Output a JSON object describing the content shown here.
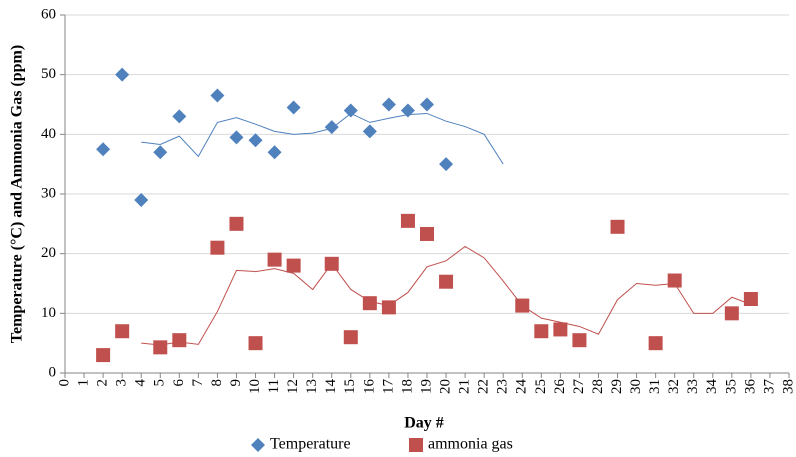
{
  "chart_data": {
    "type": "scatter",
    "xlabel": "Day #",
    "ylabel": "Temperature (°C) and Ammonia Gas (ppm)",
    "xlim": [
      0,
      38
    ],
    "ylim": [
      0,
      60
    ],
    "xticks": [
      0,
      1,
      2,
      3,
      4,
      5,
      6,
      7,
      8,
      9,
      10,
      11,
      12,
      13,
      14,
      15,
      16,
      17,
      18,
      19,
      20,
      21,
      22,
      23,
      24,
      25,
      26,
      27,
      28,
      29,
      30,
      31,
      32,
      33,
      34,
      35,
      36,
      37,
      38
    ],
    "yticks": [
      0,
      10,
      20,
      30,
      40,
      50,
      60
    ],
    "grid": true,
    "legend": "bottom",
    "series": [
      {
        "name": "Temperature",
        "color": "#4f81bd",
        "marker": "diamond",
        "x": [
          2,
          3,
          4,
          5,
          6,
          8,
          9,
          10,
          11,
          12,
          14,
          15,
          16,
          17,
          18,
          19,
          20
        ],
        "values": [
          37.5,
          50,
          29,
          37,
          43,
          46.5,
          39.5,
          39,
          37,
          44.5,
          41.2,
          44,
          40.5,
          45,
          44,
          45,
          35
        ]
      },
      {
        "name": "ammonia gas",
        "color": "#c0504d",
        "marker": "square",
        "x": [
          2,
          3,
          5,
          6,
          8,
          9,
          10,
          11,
          12,
          14,
          15,
          16,
          17,
          18,
          19,
          20,
          24,
          25,
          26,
          27,
          29,
          31,
          32,
          35,
          36
        ],
        "values": [
          3,
          7,
          4.3,
          5.5,
          21,
          25,
          5,
          19,
          18,
          18.3,
          6,
          11.7,
          11,
          25.5,
          23.3,
          15.3,
          11.3,
          7,
          7.3,
          5.5,
          24.5,
          5,
          15.5,
          10,
          12.4
        ]
      }
    ],
    "trendlines": [
      {
        "color": "#4f81bd",
        "x": [
          4,
          5,
          6,
          7,
          8,
          9,
          10,
          11,
          12,
          13,
          14,
          15,
          16,
          17,
          18,
          19,
          20,
          21,
          22,
          23
        ],
        "values": [
          38.7,
          38.3,
          39.7,
          36.3,
          42,
          42.8,
          41.7,
          40.5,
          40,
          40.2,
          41,
          43.5,
          42,
          42.7,
          43.3,
          43.5,
          42.2,
          41.3,
          40,
          35
        ]
      },
      {
        "color": "#c0504d",
        "x": [
          4,
          5,
          6,
          7,
          8,
          9,
          10,
          11,
          12,
          13,
          14,
          15,
          16,
          17,
          18,
          19,
          20,
          21,
          22,
          23,
          24,
          25,
          26,
          27,
          28,
          29,
          30,
          31,
          32,
          33,
          34,
          35,
          36
        ],
        "values": [
          5,
          4.7,
          5.2,
          4.8,
          10.3,
          17.2,
          17,
          17.5,
          16.7,
          14,
          18.3,
          14,
          12,
          11.3,
          13.5,
          17.8,
          18.8,
          21.2,
          19.3,
          15.4,
          11.3,
          9.2,
          8.5,
          7.8,
          6.5,
          12.3,
          15,
          14.7,
          15,
          10,
          10,
          12.7,
          11.5
        ]
      }
    ]
  }
}
